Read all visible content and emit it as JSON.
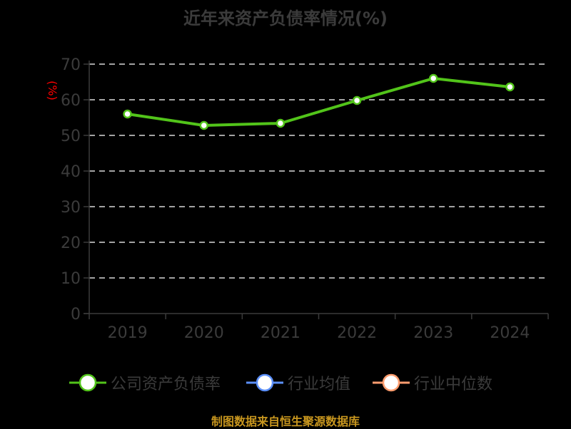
{
  "title": "近年来资产负债率情况(%)",
  "y_unit_label": "(%)",
  "footer": "制图数据来自恒生聚源数据库",
  "legend": [
    {
      "label": "公司资产负债率",
      "color": "#52c41a"
    },
    {
      "label": "行业均值",
      "color": "#5b8ff9"
    },
    {
      "label": "行业中位数",
      "color": "#ff9d6f"
    }
  ],
  "chart_data": {
    "type": "line",
    "title": "近年来资产负债率情况(%)",
    "xlabel": "",
    "ylabel": "(%)",
    "categories": [
      "2019",
      "2020",
      "2021",
      "2022",
      "2023",
      "2024"
    ],
    "series": [
      {
        "name": "公司资产负债率",
        "color": "#52c41a",
        "values": [
          56.0,
          52.8,
          53.4,
          59.8,
          66.0,
          63.6
        ]
      },
      {
        "name": "行业均值",
        "color": "#5b8ff9",
        "values": []
      },
      {
        "name": "行业中位数",
        "color": "#ff9d6f",
        "values": []
      }
    ],
    "ylim": [
      0,
      70
    ],
    "yticks": [
      0,
      10,
      20,
      30,
      40,
      50,
      60,
      70
    ],
    "grid": "horizontal dashed",
    "legend_position": "bottom"
  }
}
